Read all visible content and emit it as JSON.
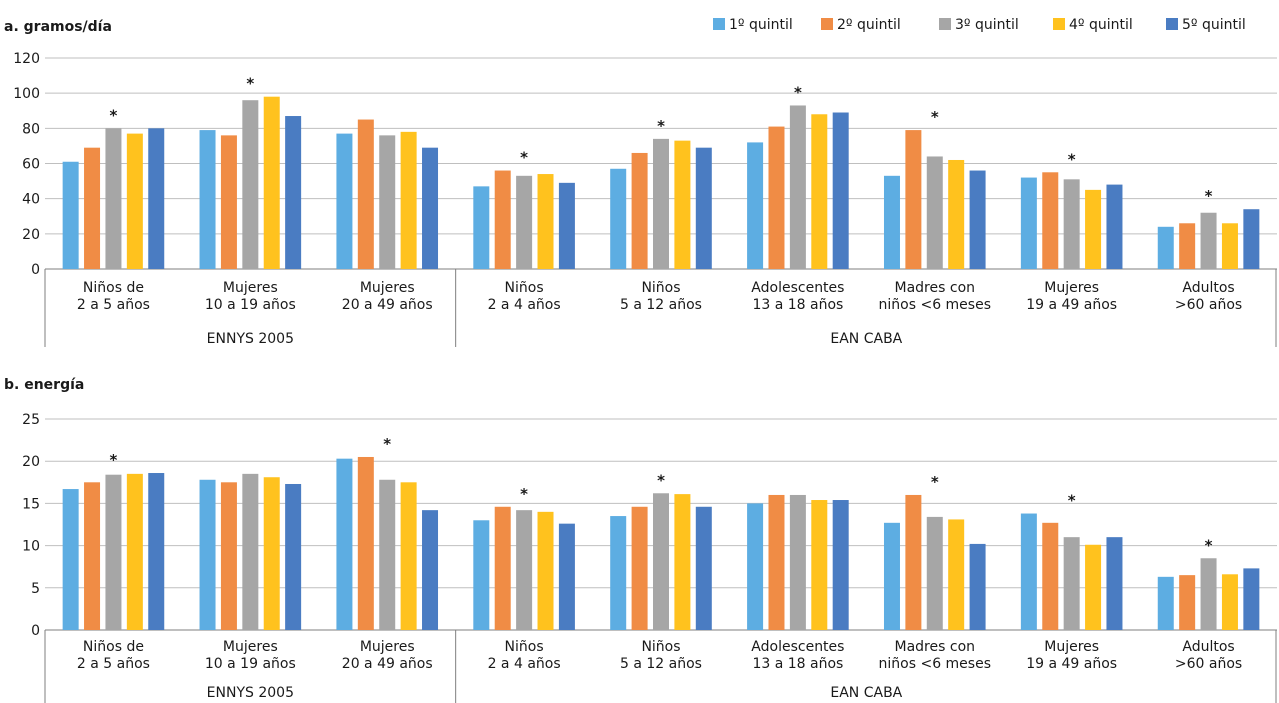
{
  "legend": [
    {
      "name": "1º quintil",
      "color": "#5DADE2"
    },
    {
      "name": "2º quintil",
      "color": "#F08C45"
    },
    {
      "name": "3º quintil",
      "color": "#A6A6A6"
    },
    {
      "name": "4º quintil",
      "color": "#FFC21E"
    },
    {
      "name": "5º quintil",
      "color": "#4A7CC2"
    }
  ],
  "chart_data": [
    {
      "type": "bar",
      "title": "a. gramos/día",
      "ylim": [
        0,
        120
      ],
      "yticks": [
        0,
        20,
        40,
        60,
        80,
        100,
        120
      ],
      "grid": true,
      "legend_position": "top-right",
      "categories": [
        [
          "Niños de",
          "2 a 5 años"
        ],
        [
          "Mujeres",
          "10 a 19 años"
        ],
        [
          "Mujeres",
          "20 a 49 años"
        ],
        [
          "Niños",
          "2 a 4 años"
        ],
        [
          "Niños",
          "5 a 12 años"
        ],
        [
          "Adolescentes",
          "13 a 18 años"
        ],
        [
          "Madres con",
          "niños <6 meses"
        ],
        [
          "Mujeres",
          "19 a 49 años"
        ],
        [
          "Adultos",
          ">60 años"
        ]
      ],
      "groups": [
        {
          "label": "ENNYS 2005",
          "count": 3
        },
        {
          "label": "EAN CABA",
          "count": 6
        }
      ],
      "series": [
        {
          "name": "1º quintil",
          "values": [
            61,
            79,
            77,
            47,
            57,
            72,
            53,
            52,
            24
          ]
        },
        {
          "name": "2º quintil",
          "values": [
            69,
            76,
            85,
            56,
            66,
            81,
            79,
            55,
            26
          ]
        },
        {
          "name": "3º quintil",
          "values": [
            80,
            96,
            76,
            53,
            74,
            93,
            64,
            51,
            32
          ]
        },
        {
          "name": "4º quintil",
          "values": [
            77,
            98,
            78,
            54,
            73,
            88,
            62,
            45,
            26
          ]
        },
        {
          "name": "5º quintil",
          "values": [
            80,
            87,
            69,
            49,
            69,
            89,
            56,
            48,
            34
          ]
        }
      ],
      "significance": [
        "*",
        "*",
        "",
        "*",
        "*",
        "*",
        "*",
        "*",
        "*"
      ]
    },
    {
      "type": "bar",
      "title": "b. energía",
      "ylim": [
        0,
        25
      ],
      "yticks": [
        0,
        5,
        10,
        15,
        20,
        25
      ],
      "grid": true,
      "categories": [
        [
          "Niños de",
          "2 a 5 años"
        ],
        [
          "Mujeres",
          "10 a 19 años"
        ],
        [
          "Mujeres",
          "20 a 49 años"
        ],
        [
          "Niños",
          "2 a 4 años"
        ],
        [
          "Niños",
          "5 a 12 años"
        ],
        [
          "Adolescentes",
          "13 a 18 años"
        ],
        [
          "Madres con",
          "niños <6 meses"
        ],
        [
          "Mujeres",
          "19 a 49 años"
        ],
        [
          "Adultos",
          ">60 años"
        ]
      ],
      "groups": [
        {
          "label": "ENNYS 2005",
          "count": 3
        },
        {
          "label": "EAN CABA",
          "count": 6
        }
      ],
      "series": [
        {
          "name": "1º quintil",
          "values": [
            16.7,
            17.8,
            20.3,
            13.0,
            13.5,
            15.0,
            12.7,
            13.8,
            6.3
          ]
        },
        {
          "name": "2º quintil",
          "values": [
            17.5,
            17.5,
            20.5,
            14.6,
            14.6,
            16.0,
            16.0,
            12.7,
            6.5
          ]
        },
        {
          "name": "3º quintil",
          "values": [
            18.4,
            18.5,
            17.8,
            14.2,
            16.2,
            16.0,
            13.4,
            11.0,
            8.5
          ]
        },
        {
          "name": "4º quintil",
          "values": [
            18.5,
            18.1,
            17.5,
            14.0,
            16.1,
            15.4,
            13.1,
            10.1,
            6.6
          ]
        },
        {
          "name": "5º quintil",
          "values": [
            18.6,
            17.3,
            14.2,
            12.6,
            14.6,
            15.4,
            10.2,
            11.0,
            7.3
          ]
        }
      ],
      "significance": [
        "*",
        "",
        "*",
        "*",
        "*",
        "",
        "*",
        "*",
        "*"
      ]
    }
  ]
}
